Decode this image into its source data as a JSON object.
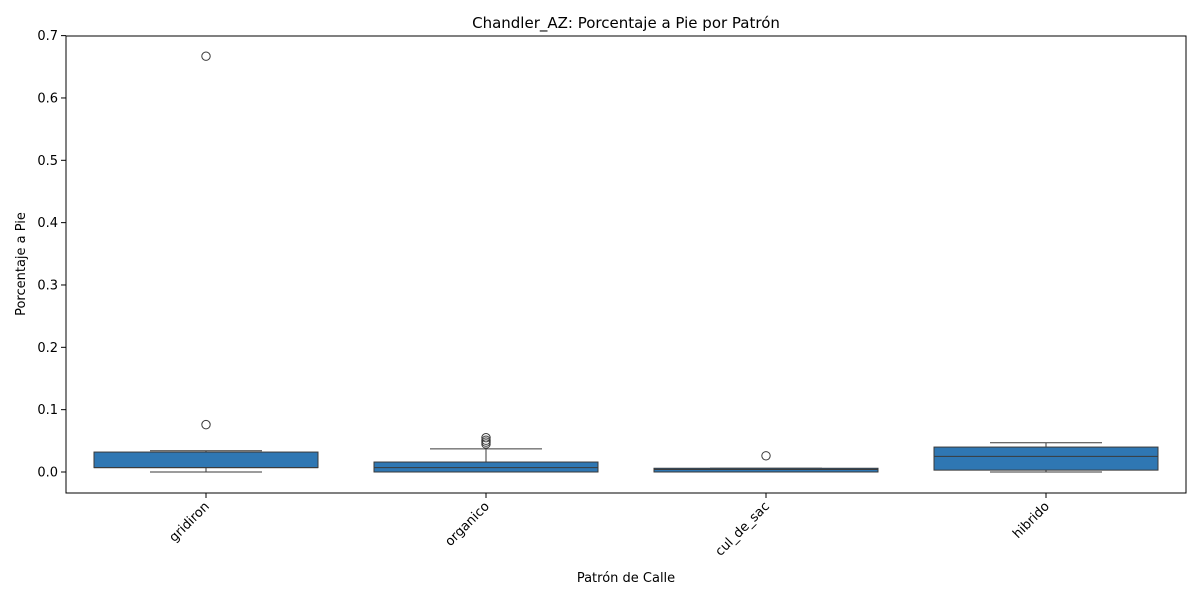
{
  "chart_data": {
    "type": "box",
    "title": "Chandler_AZ: Porcentaje a Pie por Patrón",
    "xlabel": "Patrón de Calle",
    "ylabel": "Porcentaje a Pie",
    "ylim": [
      -0.034,
      0.7
    ],
    "yticks": [
      "0.0",
      "0.1",
      "0.2",
      "0.3",
      "0.4",
      "0.5",
      "0.6",
      "0.7"
    ],
    "grid": false,
    "box_color": "#2f77b3",
    "categories": [
      "gridiron",
      "organico",
      "cul_de_sac",
      "hibrido"
    ],
    "boxes": [
      {
        "category": "gridiron",
        "whisker_low": 0.0,
        "q1": 0.007,
        "median": 0.007,
        "q3": 0.032,
        "whisker_high": 0.034,
        "outliers": [
          0.667,
          0.076
        ]
      },
      {
        "category": "organico",
        "whisker_low": 0.0,
        "q1": 0.0,
        "median": 0.007,
        "q3": 0.016,
        "whisker_high": 0.037,
        "outliers": [
          0.045,
          0.048,
          0.051,
          0.055
        ]
      },
      {
        "category": "cul_de_sac",
        "whisker_low": 0.0,
        "q1": 0.0,
        "median": 0.004,
        "q3": 0.006,
        "whisker_high": 0.006,
        "outliers": [
          0.026
        ]
      },
      {
        "category": "hibrido",
        "whisker_low": 0.0,
        "q1": 0.003,
        "median": 0.025,
        "q3": 0.04,
        "whisker_high": 0.047,
        "outliers": []
      }
    ]
  }
}
